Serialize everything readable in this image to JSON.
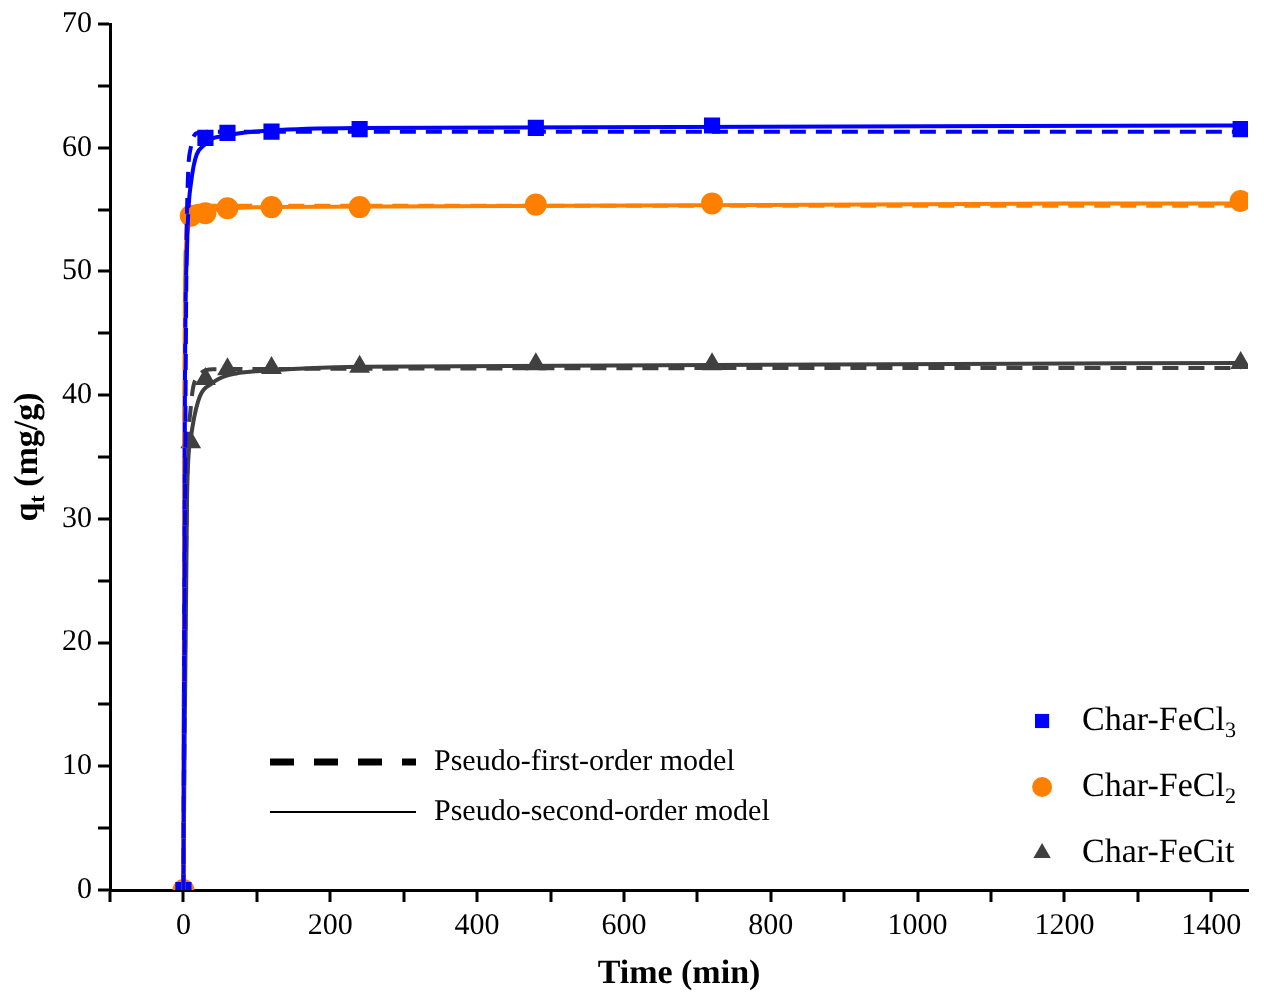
{
  "chart_data": {
    "type": "scatter",
    "xlabel": "Time (min)",
    "ylabel": "q$_{t}$ (mg/g)",
    "xlim": [
      -100,
      1450
    ],
    "xticks": [
      {
        "value": -100,
        "label": null
      },
      0,
      {
        "value": 100,
        "label": null
      },
      200,
      {
        "value": 300,
        "label": null
      },
      400,
      {
        "value": 500,
        "label": null
      },
      600,
      {
        "value": 700,
        "label": null
      },
      800,
      {
        "value": 900,
        "label": null
      },
      1000,
      {
        "value": 1100,
        "label": null
      },
      1200,
      {
        "value": 1300,
        "label": null
      },
      1400
    ],
    "ylim": [
      0,
      70
    ],
    "yticks": [
      0,
      {
        "value": 5,
        "label": null
      },
      10,
      {
        "value": 15,
        "label": null
      },
      20,
      {
        "value": 25,
        "label": null
      },
      30,
      {
        "value": 35,
        "label": null
      },
      40,
      {
        "value": 45,
        "label": null
      },
      50,
      {
        "value": 55,
        "label": null
      },
      60,
      {
        "value": 65,
        "label": null
      },
      70
    ],
    "grid": false,
    "legend": "bottom right",
    "annotations": [
      "Pseudo-first-order model",
      "Pseudo-second-order model"
    ],
    "series": [
      {
        "type": "line",
        "line_style": "dashed",
        "color": "#0000ff",
        "x": [
          0,
          2,
          5,
          10,
          20,
          40,
          1440
        ],
        "values": [
          0,
          30,
          55,
          60,
          61.2,
          61.3,
          61.3
        ]
      },
      {
        "type": "line",
        "line_style": "dashed",
        "color": "#ff8000",
        "x": [
          0,
          2,
          5,
          10,
          20,
          1440
        ],
        "values": [
          0,
          45,
          54,
          55,
          55.3,
          55.3
        ]
      },
      {
        "type": "line",
        "line_style": "dashed",
        "color": "#404040",
        "x": [
          0,
          2,
          5,
          10,
          20,
          40,
          1440
        ],
        "values": [
          0,
          18,
          33,
          39,
          41.5,
          42.1,
          42.2
        ]
      },
      {
        "type": "line",
        "line_style": "solid",
        "color": "#0000ff",
        "x": [
          0,
          2,
          5,
          10,
          30,
          60,
          120,
          240,
          1440
        ],
        "values": [
          0,
          40,
          52,
          57,
          60.3,
          61,
          61.4,
          61.6,
          61.8
        ]
      },
      {
        "type": "line",
        "line_style": "solid",
        "color": "#ff8000",
        "x": [
          0,
          2,
          5,
          10,
          30,
          120,
          1440
        ],
        "values": [
          0,
          48,
          53,
          54.3,
          54.9,
          55.2,
          55.5
        ]
      },
      {
        "type": "line",
        "line_style": "solid",
        "color": "#404040",
        "x": [
          0,
          5,
          10,
          20,
          40,
          60,
          120,
          240,
          1440
        ],
        "values": [
          0,
          32,
          36.5,
          39.5,
          41,
          41.6,
          42,
          42.3,
          42.6
        ]
      },
      {
        "name": "Char-FeCl$_{3}$",
        "marker": "square",
        "color": "#0000ff",
        "x": [
          0,
          30,
          60,
          120,
          240,
          480,
          720,
          1440
        ],
        "values": [
          0,
          60.8,
          61.2,
          61.3,
          61.5,
          61.6,
          61.8,
          61.5
        ]
      },
      {
        "name": "Char-FeCl$_{2}$",
        "marker": "circle",
        "color": "#ff8000",
        "x": [
          0,
          10,
          30,
          60,
          120,
          240,
          480,
          720,
          1440
        ],
        "values": [
          0,
          54.5,
          54.7,
          55.1,
          55.2,
          55.2,
          55.4,
          55.5,
          55.7
        ]
      },
      {
        "name": "Char-FeCit",
        "marker": "triangle",
        "color": "#404040",
        "x": [
          10,
          30,
          60,
          120,
          240,
          480,
          720,
          1440
        ],
        "values": [
          36.2,
          41.3,
          42.1,
          42.2,
          42.3,
          42.5,
          42.5,
          42.6
        ]
      }
    ]
  }
}
